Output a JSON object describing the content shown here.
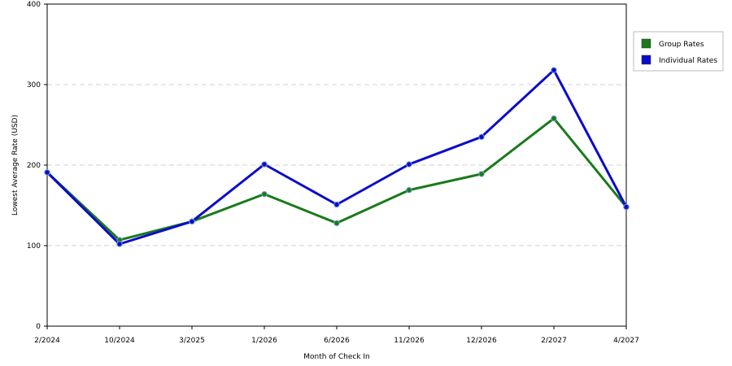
{
  "chart_data": {
    "type": "line",
    "title": "",
    "xlabel": "Month of Check In",
    "ylabel": "Lowest Average Rate (USD)",
    "categories": [
      "2/2024",
      "10/2024",
      "3/2025",
      "1/2026",
      "6/2026",
      "11/2026",
      "12/2026",
      "2/2027",
      "4/2027"
    ],
    "ylim": [
      0,
      400
    ],
    "yticks": [
      0,
      100,
      200,
      300,
      400
    ],
    "grid": "horizontal dashed",
    "legend_position": "right",
    "series": [
      {
        "name": "Group Rates",
        "color": "#1a7a1a",
        "values": [
          191,
          107,
          130,
          164,
          128,
          169,
          189,
          258,
          148
        ]
      },
      {
        "name": "Individual Rates",
        "color": "#0b0bcc",
        "values": [
          191,
          102,
          130,
          201,
          151,
          201,
          235,
          318,
          148
        ]
      }
    ]
  }
}
